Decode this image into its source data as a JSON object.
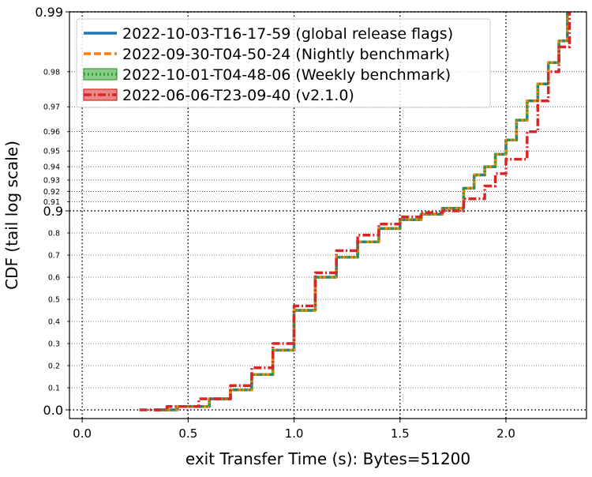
{
  "chart_data": {
    "type": "line",
    "title": "",
    "xlabel": "exit Transfer Time (s): Bytes=51200",
    "ylabel": "CDF (tail log scale)",
    "xlim": [
      -0.06,
      2.38
    ],
    "x_ticks": [
      0.0,
      0.5,
      1.0,
      1.5,
      2.0
    ],
    "x_tick_labels": [
      "0.0",
      "0.5",
      "1.0",
      "1.5",
      "2.0"
    ],
    "y_scale": "tail-log (1 - p)",
    "y_major_ticks": [
      0.0,
      0.9,
      0.99
    ],
    "y_major_labels": [
      "0.0",
      "0.9",
      "0.99"
    ],
    "y_minor_ticks": [
      0.1,
      0.2,
      0.3,
      0.4,
      0.5,
      0.6,
      0.7,
      0.8,
      0.91,
      0.92,
      0.93,
      0.94,
      0.95,
      0.96,
      0.97,
      0.98
    ],
    "y_minor_labels": [
      "0.1",
      "0.2",
      "0.3",
      "0.4",
      "0.5",
      "0.6",
      "0.7",
      "0.8",
      "0.91",
      "0.92",
      "0.93",
      "0.94",
      "0.95",
      "0.96",
      "0.97",
      "0.98"
    ],
    "grid": true,
    "legend_position": "top-left",
    "series": [
      {
        "name": "2022-10-03-T16-17-59 (global release flags)",
        "color": "#1f77b4",
        "style": "solid",
        "points": [
          [
            0.34,
            0.0
          ],
          [
            0.45,
            0.015
          ],
          [
            0.6,
            0.05
          ],
          [
            0.7,
            0.09
          ],
          [
            0.8,
            0.16
          ],
          [
            0.9,
            0.27
          ],
          [
            1.0,
            0.45
          ],
          [
            1.1,
            0.6
          ],
          [
            1.2,
            0.69
          ],
          [
            1.3,
            0.76
          ],
          [
            1.4,
            0.82
          ],
          [
            1.5,
            0.86
          ],
          [
            1.6,
            0.885
          ],
          [
            1.7,
            0.903
          ],
          [
            1.8,
            0.923
          ],
          [
            1.85,
            0.934
          ],
          [
            1.9,
            0.94
          ],
          [
            1.95,
            0.948
          ],
          [
            2.0,
            0.956
          ],
          [
            2.05,
            0.965
          ],
          [
            2.1,
            0.972
          ],
          [
            2.15,
            0.977
          ],
          [
            2.2,
            0.982
          ],
          [
            2.25,
            0.986
          ],
          [
            2.29,
            0.99
          ]
        ]
      },
      {
        "name": "2022-09-30-T04-50-24 (Nightly benchmark)",
        "color": "#ff7f0e",
        "style": "dashed",
        "points": [
          [
            0.34,
            0.0
          ],
          [
            0.45,
            0.015
          ],
          [
            0.6,
            0.05
          ],
          [
            0.7,
            0.09
          ],
          [
            0.8,
            0.16
          ],
          [
            0.9,
            0.27
          ],
          [
            1.0,
            0.45
          ],
          [
            1.1,
            0.6
          ],
          [
            1.2,
            0.69
          ],
          [
            1.3,
            0.76
          ],
          [
            1.4,
            0.82
          ],
          [
            1.5,
            0.86
          ],
          [
            1.6,
            0.885
          ],
          [
            1.7,
            0.903
          ],
          [
            1.8,
            0.923
          ],
          [
            1.85,
            0.934
          ],
          [
            1.9,
            0.94
          ],
          [
            1.95,
            0.948
          ],
          [
            2.0,
            0.956
          ],
          [
            2.05,
            0.965
          ],
          [
            2.1,
            0.972
          ],
          [
            2.15,
            0.977
          ],
          [
            2.2,
            0.982
          ],
          [
            2.25,
            0.986
          ],
          [
            2.29,
            0.99
          ]
        ]
      },
      {
        "name": "2022-10-01-T04-48-06 (Weekly benchmark)",
        "color": "#2ca02c",
        "style": "dotted",
        "points": [
          [
            0.34,
            0.0
          ],
          [
            0.45,
            0.015
          ],
          [
            0.6,
            0.05
          ],
          [
            0.7,
            0.09
          ],
          [
            0.8,
            0.16
          ],
          [
            0.9,
            0.27
          ],
          [
            1.0,
            0.45
          ],
          [
            1.1,
            0.6
          ],
          [
            1.2,
            0.69
          ],
          [
            1.3,
            0.76
          ],
          [
            1.4,
            0.82
          ],
          [
            1.5,
            0.86
          ],
          [
            1.6,
            0.885
          ],
          [
            1.7,
            0.903
          ],
          [
            1.8,
            0.923
          ],
          [
            1.85,
            0.934
          ],
          [
            1.9,
            0.94
          ],
          [
            1.95,
            0.948
          ],
          [
            2.0,
            0.956
          ],
          [
            2.05,
            0.965
          ],
          [
            2.1,
            0.972
          ],
          [
            2.15,
            0.977
          ],
          [
            2.2,
            0.982
          ],
          [
            2.25,
            0.986
          ],
          [
            2.29,
            0.99
          ]
        ]
      },
      {
        "name": "2022-06-06-T23-09-40 (v2.1.0)",
        "color": "#d62728",
        "style": "dashdot",
        "points": [
          [
            0.27,
            0.0
          ],
          [
            0.4,
            0.015
          ],
          [
            0.55,
            0.05
          ],
          [
            0.7,
            0.11
          ],
          [
            0.8,
            0.19
          ],
          [
            0.9,
            0.3
          ],
          [
            1.0,
            0.47
          ],
          [
            1.1,
            0.62
          ],
          [
            1.2,
            0.72
          ],
          [
            1.3,
            0.79
          ],
          [
            1.4,
            0.84
          ],
          [
            1.5,
            0.873
          ],
          [
            1.6,
            0.892
          ],
          [
            1.7,
            0.9
          ],
          [
            1.8,
            0.913
          ],
          [
            1.9,
            0.925
          ],
          [
            1.95,
            0.935
          ],
          [
            2.0,
            0.945
          ],
          [
            2.1,
            0.96
          ],
          [
            2.15,
            0.972
          ],
          [
            2.2,
            0.98
          ],
          [
            2.25,
            0.985
          ],
          [
            2.3,
            0.99
          ]
        ]
      }
    ]
  }
}
